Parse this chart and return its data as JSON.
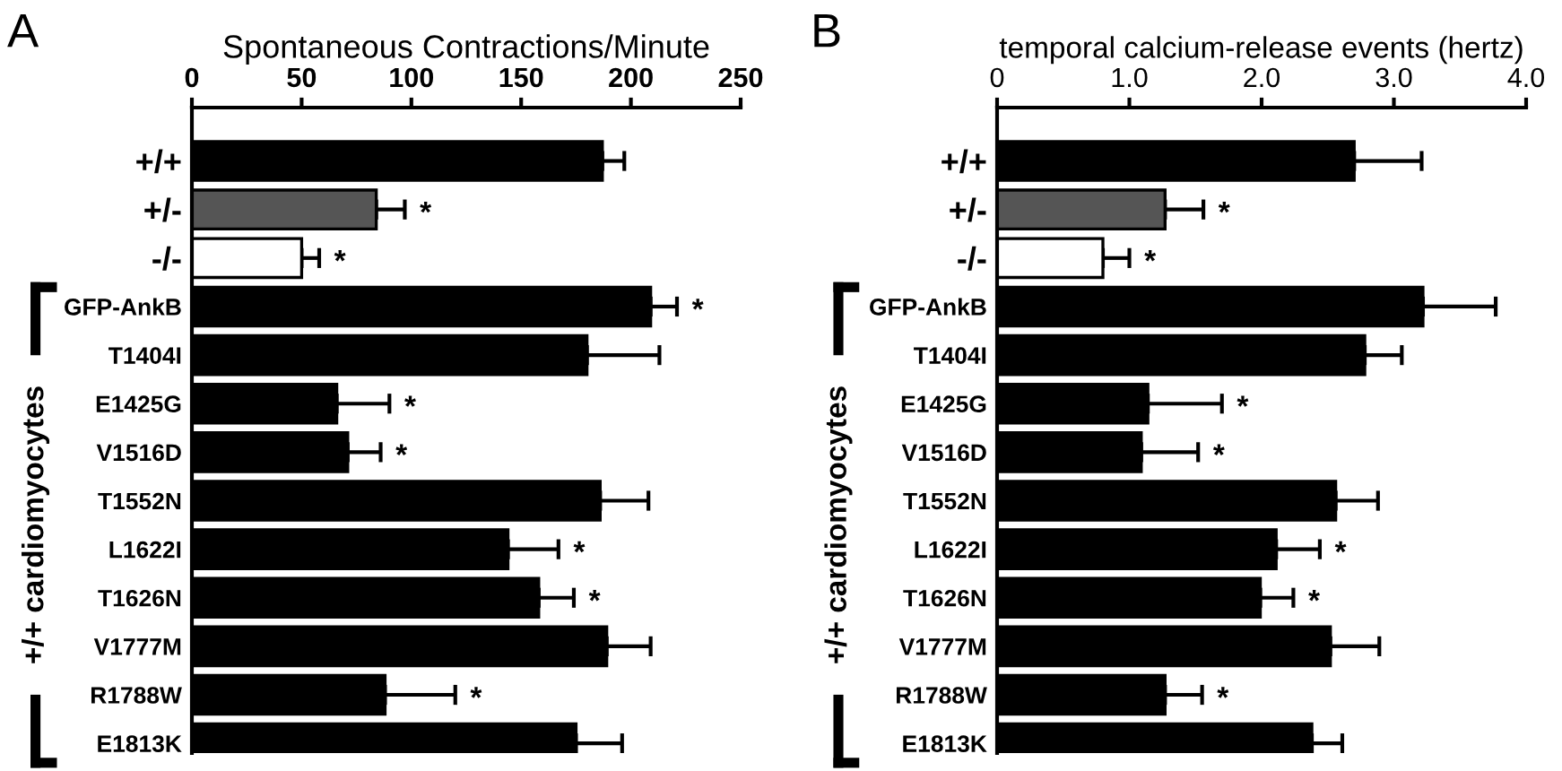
{
  "chart_data": [
    {
      "type": "bar",
      "orientation": "horizontal",
      "title": "Spontaneous Contractions/Minute",
      "categories": [
        "+/+",
        "+/-",
        "-/-",
        "GFP-AnkB",
        "T1404I",
        "E1425G",
        "V1516D",
        "T1552N",
        "L1622I",
        "T1626N",
        "V1777M",
        "R1788W",
        "E1813K"
      ],
      "values": [
        187,
        84,
        50,
        209,
        180,
        66,
        71,
        186,
        144,
        158,
        189,
        88,
        175
      ],
      "errors": [
        [
          187,
          197
        ],
        [
          84,
          97
        ],
        [
          50,
          58
        ],
        [
          209,
          221
        ],
        [
          180,
          213
        ],
        [
          66,
          90
        ],
        [
          71,
          86
        ],
        [
          186,
          208
        ],
        [
          144,
          167
        ],
        [
          158,
          174
        ],
        [
          189,
          209
        ],
        [
          88,
          120
        ],
        [
          175,
          196
        ]
      ],
      "value_labels": [
        null,
        "*",
        "*",
        "*",
        null,
        "*",
        "*",
        null,
        "*",
        "*",
        null,
        "*",
        null
      ],
      "colors": [
        "#000000",
        "#555555",
        "#ffffff",
        "#000000",
        "#000000",
        "#000000",
        "#000000",
        "#000000",
        "#000000",
        "#000000",
        "#000000",
        "#000000",
        "#000000"
      ],
      "xlim": [
        0,
        250
      ],
      "xticks": [
        0,
        50,
        100,
        150,
        200,
        250
      ],
      "annotations": [
        "A",
        "+/+ cardiomyocytes"
      ]
    },
    {
      "type": "bar",
      "orientation": "horizontal",
      "title": "temporal calcium-release events (hertz)",
      "categories": [
        "+/+",
        "+/-",
        "-/-",
        "GFP-AnkB",
        "T1404I",
        "E1425G",
        "V1516D",
        "T1552N",
        "L1622I",
        "T1626N",
        "V1777M",
        "R1788W",
        "E1813K"
      ],
      "values": [
        2.7,
        1.27,
        0.8,
        3.22,
        2.78,
        1.14,
        1.09,
        2.56,
        2.11,
        1.99,
        2.52,
        1.27,
        2.38
      ],
      "errors": [
        [
          2.7,
          3.21
        ],
        [
          1.27,
          1.56
        ],
        [
          0.8,
          1.0
        ],
        [
          3.22,
          3.77
        ],
        [
          2.78,
          3.06
        ],
        [
          1.14,
          1.7
        ],
        [
          1.09,
          1.52
        ],
        [
          2.56,
          2.88
        ],
        [
          2.11,
          2.44
        ],
        [
          1.99,
          2.24
        ],
        [
          2.52,
          2.89
        ],
        [
          1.27,
          1.55
        ],
        [
          2.38,
          2.61
        ]
      ],
      "value_labels": [
        null,
        "*",
        "*",
        null,
        null,
        "*",
        "*",
        null,
        "*",
        "*",
        null,
        "*",
        null
      ],
      "colors": [
        "#000000",
        "#555555",
        "#ffffff",
        "#000000",
        "#000000",
        "#000000",
        "#000000",
        "#000000",
        "#000000",
        "#000000",
        "#000000",
        "#000000",
        "#000000"
      ],
      "xlim": [
        0,
        4.0
      ],
      "xticks": [
        0,
        {
          "value": 1,
          "label": "1.0"
        },
        {
          "value": 2,
          "label": "2.0"
        },
        {
          "value": 3,
          "label": "3.0"
        },
        {
          "value": 4,
          "label": "4.0"
        }
      ],
      "annotations": [
        "B",
        "+/+ cardiomyocytes"
      ]
    }
  ]
}
